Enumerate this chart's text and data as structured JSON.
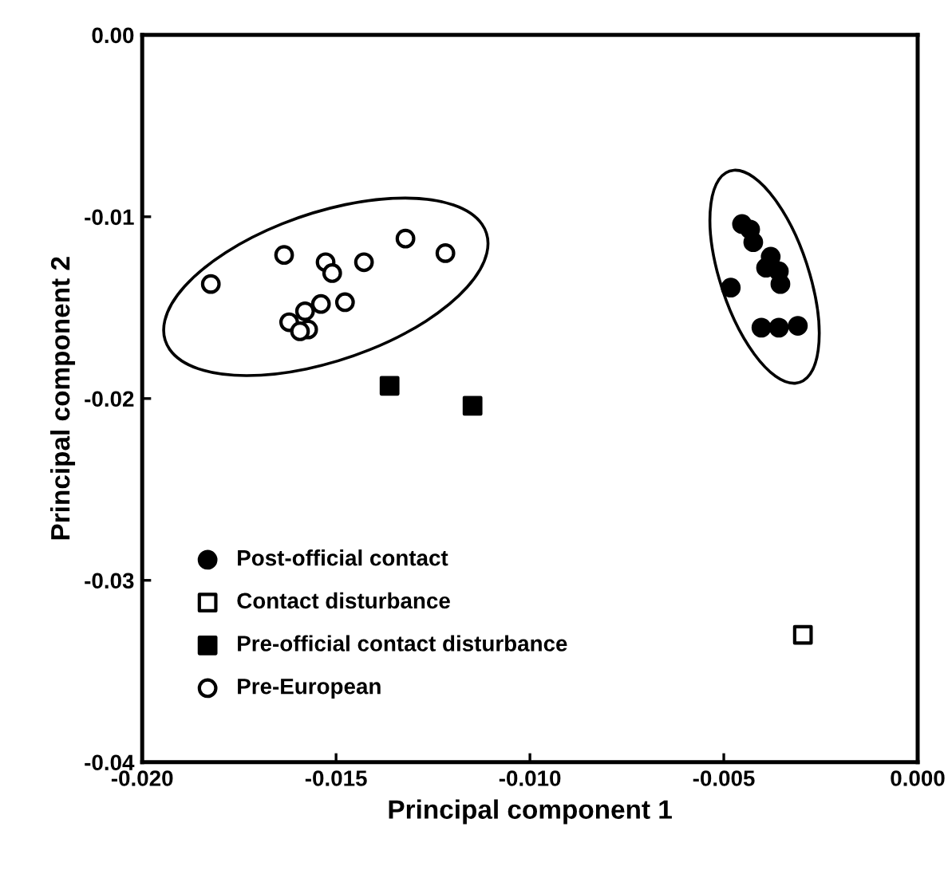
{
  "chart_data": {
    "type": "scatter",
    "xlabel": "Principal component 1",
    "ylabel": "Principal component 2",
    "xlim": [
      -0.02,
      0.0
    ],
    "ylim": [
      -0.04,
      0.0
    ],
    "xticks": [
      {
        "value": -0.02,
        "label": "-0.020"
      },
      {
        "value": -0.015,
        "label": "-0.015"
      },
      {
        "value": -0.01,
        "label": "-0.010"
      },
      {
        "value": -0.005,
        "label": "-0.005"
      },
      {
        "value": 0.0,
        "label": "0.000"
      }
    ],
    "yticks": [
      {
        "value": 0.0,
        "label": "0.00"
      },
      {
        "value": -0.01,
        "label": "-0.01"
      },
      {
        "value": -0.02,
        "label": "-0.02"
      },
      {
        "value": -0.03,
        "label": "-0.03"
      },
      {
        "value": -0.04,
        "label": "-0.04"
      }
    ],
    "grid": false,
    "legend": "bottom left",
    "series": [
      {
        "name": "Post-official contact",
        "color": "#000000",
        "marker": "circle",
        "x": [
          -0.00453,
          -0.00432,
          -0.00424,
          -0.00379,
          -0.00391,
          -0.00358,
          -0.00354,
          -0.00482,
          -0.00403,
          -0.00358,
          -0.00309
        ],
        "values": [
          -0.0104,
          -0.0107,
          -0.0114,
          -0.0122,
          -0.0128,
          -0.013,
          -0.0137,
          -0.0139,
          -0.0161,
          -0.0161,
          -0.016
        ]
      },
      {
        "name": "Contact disturbance",
        "color": "#ffffff",
        "marker": "square",
        "x": [
          -0.00296
        ],
        "values": [
          -0.033
        ]
      },
      {
        "name": "Pre-official contact disturbance",
        "color": "#000000",
        "marker": "square",
        "x": [
          -0.01362,
          -0.01148
        ],
        "values": [
          -0.0193,
          -0.0204
        ]
      },
      {
        "name": "Pre-European",
        "color": "#ffffff",
        "marker": "circle",
        "x": [
          -0.01823,
          -0.01634,
          -0.01527,
          -0.0151,
          -0.01428,
          -0.01321,
          -0.01218,
          -0.01477,
          -0.01539,
          -0.0158,
          -0.01621,
          -0.01572,
          -0.01593
        ],
        "values": [
          -0.0137,
          -0.0121,
          -0.0125,
          -0.0131,
          -0.0125,
          -0.0112,
          -0.012,
          -0.0147,
          -0.0148,
          -0.0152,
          -0.0158,
          -0.0162,
          -0.0163
        ]
      }
    ]
  }
}
